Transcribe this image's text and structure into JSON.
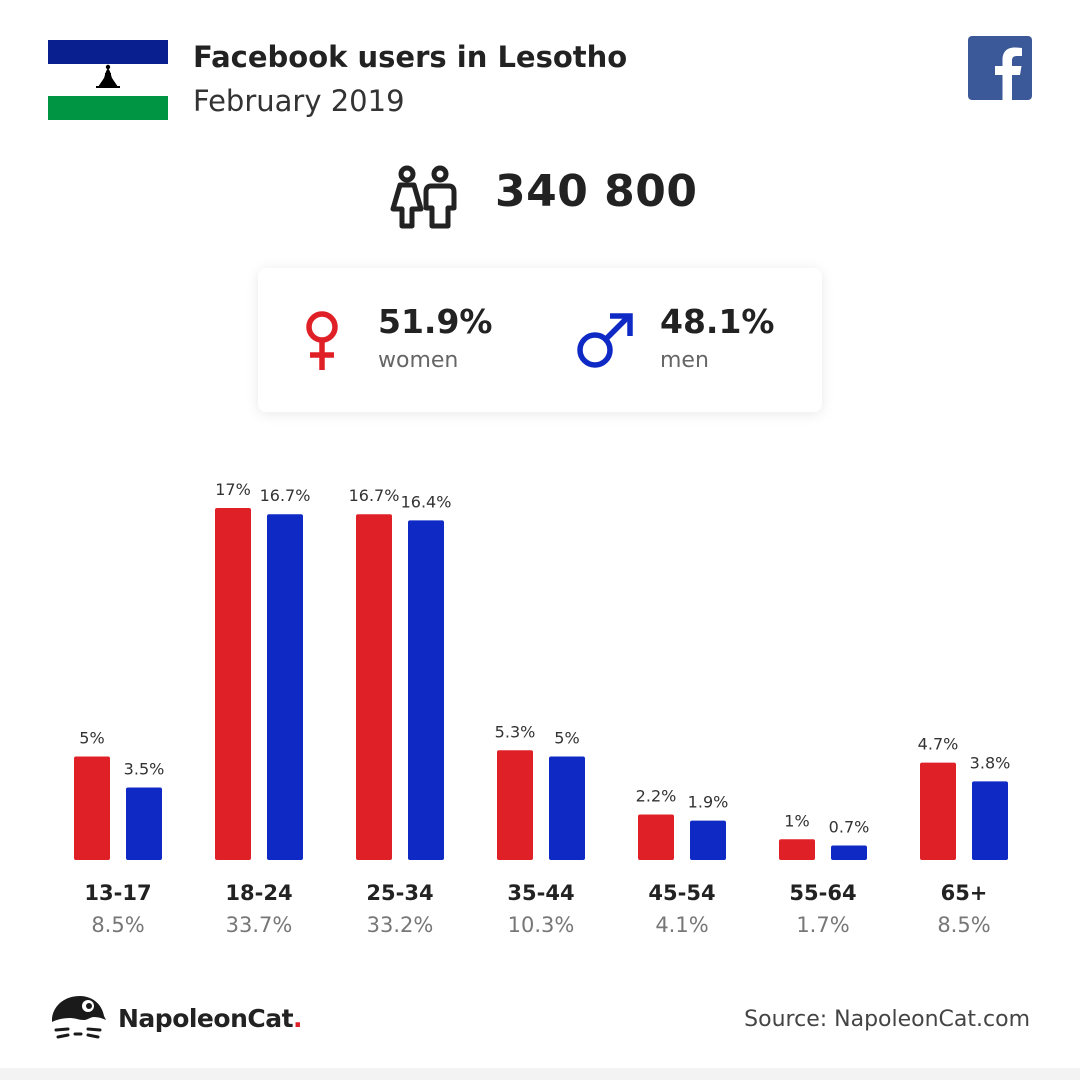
{
  "header": {
    "title": "Facebook users in Lesotho",
    "subtitle": "February 2019"
  },
  "icons": {
    "flag": "lesotho-flag-icon",
    "facebook": "facebook-logo-icon",
    "users": "users-icon",
    "female": "female-symbol-icon",
    "male": "male-symbol-icon",
    "brand": "napoleoncat-logo-icon"
  },
  "summary": {
    "total_users": "340 800",
    "women": {
      "percent": "51.9%",
      "label": "women"
    },
    "men": {
      "percent": "48.1%",
      "label": "men"
    }
  },
  "colors": {
    "women": "#e02027",
    "men": "#0f2ac4",
    "facebook": "#3b5998",
    "flag_blue": "#0a1f8f",
    "flag_green": "#009543"
  },
  "chart_data": {
    "type": "bar",
    "categories": [
      "13-17",
      "18-24",
      "25-34",
      "35-44",
      "45-54",
      "55-64",
      "65+"
    ],
    "category_totals": [
      "8.5%",
      "33.7%",
      "33.2%",
      "10.3%",
      "4.1%",
      "1.7%",
      "8.5%"
    ],
    "series": [
      {
        "name": "women",
        "values": [
          5,
          17,
          16.7,
          5.3,
          2.2,
          1,
          4.7
        ],
        "labels": [
          "5%",
          "17%",
          "16.7%",
          "5.3%",
          "2.2%",
          "1%",
          "4.7%"
        ]
      },
      {
        "name": "men",
        "values": [
          3.5,
          16.7,
          16.4,
          5,
          1.9,
          0.7,
          3.8
        ],
        "labels": [
          "3.5%",
          "16.7%",
          "16.4%",
          "5%",
          "1.9%",
          "0.7%",
          "3.8%"
        ]
      }
    ],
    "ylim": [
      0,
      17
    ],
    "grid": false
  },
  "footer": {
    "brand_name": "NapoleonCat",
    "brand_dot": ".",
    "source": "Source: NapoleonCat.com"
  }
}
